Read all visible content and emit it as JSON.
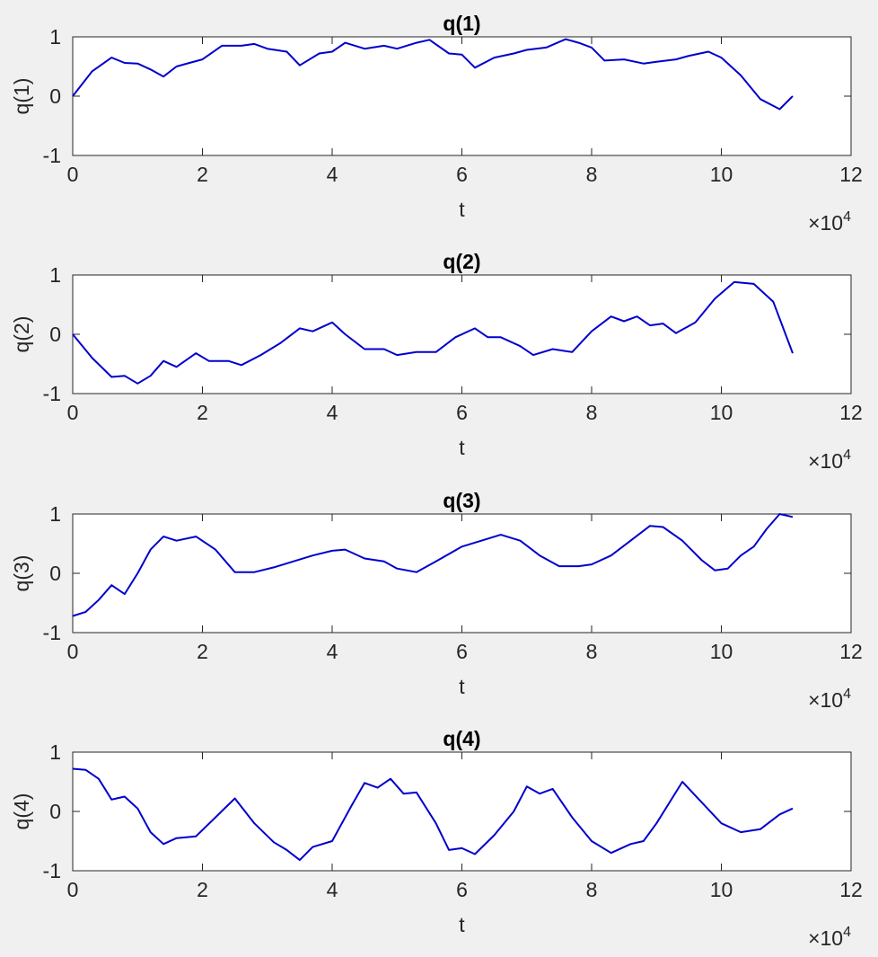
{
  "chart_data": [
    {
      "type": "line",
      "title": "q(1)",
      "xlabel": "t",
      "ylabel": "q(1)",
      "x_exponent_label": "×10",
      "x_exponent_power": "4",
      "xlim": [
        0,
        12
      ],
      "ylim": [
        -1,
        1
      ],
      "x_ticks": [
        0,
        2,
        4,
        6,
        8,
        10,
        12
      ],
      "y_ticks": [
        -1,
        0,
        1
      ],
      "color": "#0000cd",
      "series": [
        {
          "x": [
            0,
            0.3,
            0.6,
            0.8,
            1.0,
            1.2,
            1.4,
            1.6,
            1.8,
            2.0,
            2.3,
            2.6,
            2.8,
            3.0,
            3.3,
            3.5,
            3.8,
            4.0,
            4.2,
            4.5,
            4.8,
            5.0,
            5.3,
            5.5,
            5.8,
            6.0,
            6.2,
            6.5,
            6.8,
            7.0,
            7.3,
            7.6,
            7.8,
            8.0,
            8.2,
            8.5,
            8.8,
            9.0,
            9.3,
            9.5,
            9.8,
            10.0,
            10.3,
            10.6,
            10.9,
            11.1
          ],
          "y": [
            0.0,
            0.42,
            0.65,
            0.56,
            0.55,
            0.45,
            0.33,
            0.5,
            0.56,
            0.62,
            0.85,
            0.85,
            0.88,
            0.8,
            0.75,
            0.52,
            0.72,
            0.75,
            0.9,
            0.8,
            0.85,
            0.8,
            0.9,
            0.95,
            0.72,
            0.7,
            0.48,
            0.65,
            0.72,
            0.78,
            0.82,
            0.96,
            0.9,
            0.82,
            0.6,
            0.62,
            0.55,
            0.58,
            0.62,
            0.68,
            0.75,
            0.65,
            0.35,
            -0.05,
            -0.22,
            0.0
          ]
        }
      ]
    },
    {
      "type": "line",
      "title": "q(2)",
      "xlabel": "t",
      "ylabel": "q(2)",
      "x_exponent_label": "×10",
      "x_exponent_power": "4",
      "xlim": [
        0,
        12
      ],
      "ylim": [
        -1,
        1
      ],
      "x_ticks": [
        0,
        2,
        4,
        6,
        8,
        10,
        12
      ],
      "y_ticks": [
        -1,
        0,
        1
      ],
      "color": "#0000cd",
      "series": [
        {
          "x": [
            0,
            0.3,
            0.6,
            0.8,
            1.0,
            1.2,
            1.4,
            1.6,
            1.9,
            2.1,
            2.4,
            2.6,
            2.9,
            3.2,
            3.5,
            3.7,
            4.0,
            4.2,
            4.5,
            4.8,
            5.0,
            5.3,
            5.6,
            5.9,
            6.2,
            6.4,
            6.6,
            6.9,
            7.1,
            7.4,
            7.7,
            8.0,
            8.3,
            8.5,
            8.7,
            8.9,
            9.1,
            9.3,
            9.6,
            9.9,
            10.2,
            10.5,
            10.8,
            11.1
          ],
          "y": [
            0.0,
            -0.4,
            -0.72,
            -0.7,
            -0.83,
            -0.7,
            -0.45,
            -0.55,
            -0.32,
            -0.45,
            -0.45,
            -0.52,
            -0.35,
            -0.15,
            0.1,
            0.05,
            0.2,
            0.0,
            -0.25,
            -0.25,
            -0.35,
            -0.3,
            -0.3,
            -0.05,
            0.1,
            -0.05,
            -0.05,
            -0.2,
            -0.35,
            -0.25,
            -0.3,
            0.05,
            0.3,
            0.22,
            0.3,
            0.15,
            0.18,
            0.02,
            0.2,
            0.6,
            0.88,
            0.85,
            0.55,
            -0.32
          ]
        }
      ]
    },
    {
      "type": "line",
      "title": "q(3)",
      "xlabel": "t",
      "ylabel": "q(3)",
      "x_exponent_label": "×10",
      "x_exponent_power": "4",
      "xlim": [
        0,
        12
      ],
      "ylim": [
        -1,
        1
      ],
      "x_ticks": [
        0,
        2,
        4,
        6,
        8,
        10,
        12
      ],
      "y_ticks": [
        -1,
        0,
        1
      ],
      "color": "#0000cd",
      "series": [
        {
          "x": [
            0,
            0.2,
            0.4,
            0.6,
            0.8,
            1.0,
            1.2,
            1.4,
            1.6,
            1.9,
            2.2,
            2.5,
            2.8,
            3.1,
            3.4,
            3.7,
            4.0,
            4.2,
            4.5,
            4.8,
            5.0,
            5.3,
            5.6,
            6.0,
            6.3,
            6.6,
            6.9,
            7.2,
            7.5,
            7.8,
            8.0,
            8.3,
            8.6,
            8.9,
            9.1,
            9.4,
            9.7,
            9.9,
            10.1,
            10.3,
            10.5,
            10.7,
            10.9,
            11.1
          ],
          "y": [
            -0.72,
            -0.65,
            -0.45,
            -0.2,
            -0.35,
            0.0,
            0.4,
            0.62,
            0.55,
            0.62,
            0.4,
            0.02,
            0.02,
            0.1,
            0.2,
            0.3,
            0.38,
            0.4,
            0.25,
            0.2,
            0.08,
            0.02,
            0.2,
            0.45,
            0.55,
            0.65,
            0.55,
            0.3,
            0.12,
            0.12,
            0.15,
            0.3,
            0.55,
            0.8,
            0.78,
            0.55,
            0.22,
            0.05,
            0.08,
            0.3,
            0.45,
            0.75,
            1.0,
            0.95
          ]
        }
      ]
    },
    {
      "type": "line",
      "title": "q(4)",
      "xlabel": "t",
      "ylabel": "q(4)",
      "x_exponent_label": "×10",
      "x_exponent_power": "4",
      "xlim": [
        0,
        12
      ],
      "ylim": [
        -1,
        1
      ],
      "x_ticks": [
        0,
        2,
        4,
        6,
        8,
        10,
        12
      ],
      "y_ticks": [
        -1,
        0,
        1
      ],
      "color": "#0000cd",
      "series": [
        {
          "x": [
            0,
            0.2,
            0.4,
            0.6,
            0.8,
            1.0,
            1.2,
            1.4,
            1.6,
            1.9,
            2.2,
            2.5,
            2.8,
            3.1,
            3.3,
            3.5,
            3.7,
            4.0,
            4.3,
            4.5,
            4.7,
            4.9,
            5.1,
            5.3,
            5.6,
            5.8,
            6.0,
            6.2,
            6.5,
            6.8,
            7.0,
            7.2,
            7.4,
            7.7,
            8.0,
            8.3,
            8.6,
            8.8,
            9.0,
            9.2,
            9.4,
            9.7,
            10.0,
            10.3,
            10.6,
            10.9,
            11.1
          ],
          "y": [
            0.72,
            0.7,
            0.55,
            0.2,
            0.25,
            0.05,
            -0.35,
            -0.55,
            -0.45,
            -0.42,
            -0.1,
            0.22,
            -0.2,
            -0.52,
            -0.65,
            -0.82,
            -0.6,
            -0.5,
            0.1,
            0.48,
            0.4,
            0.55,
            0.3,
            0.32,
            -0.2,
            -0.65,
            -0.62,
            -0.72,
            -0.4,
            0.0,
            0.42,
            0.3,
            0.38,
            -0.1,
            -0.5,
            -0.7,
            -0.55,
            -0.5,
            -0.2,
            0.15,
            0.5,
            0.15,
            -0.2,
            -0.35,
            -0.3,
            -0.05,
            0.05
          ]
        }
      ]
    }
  ]
}
